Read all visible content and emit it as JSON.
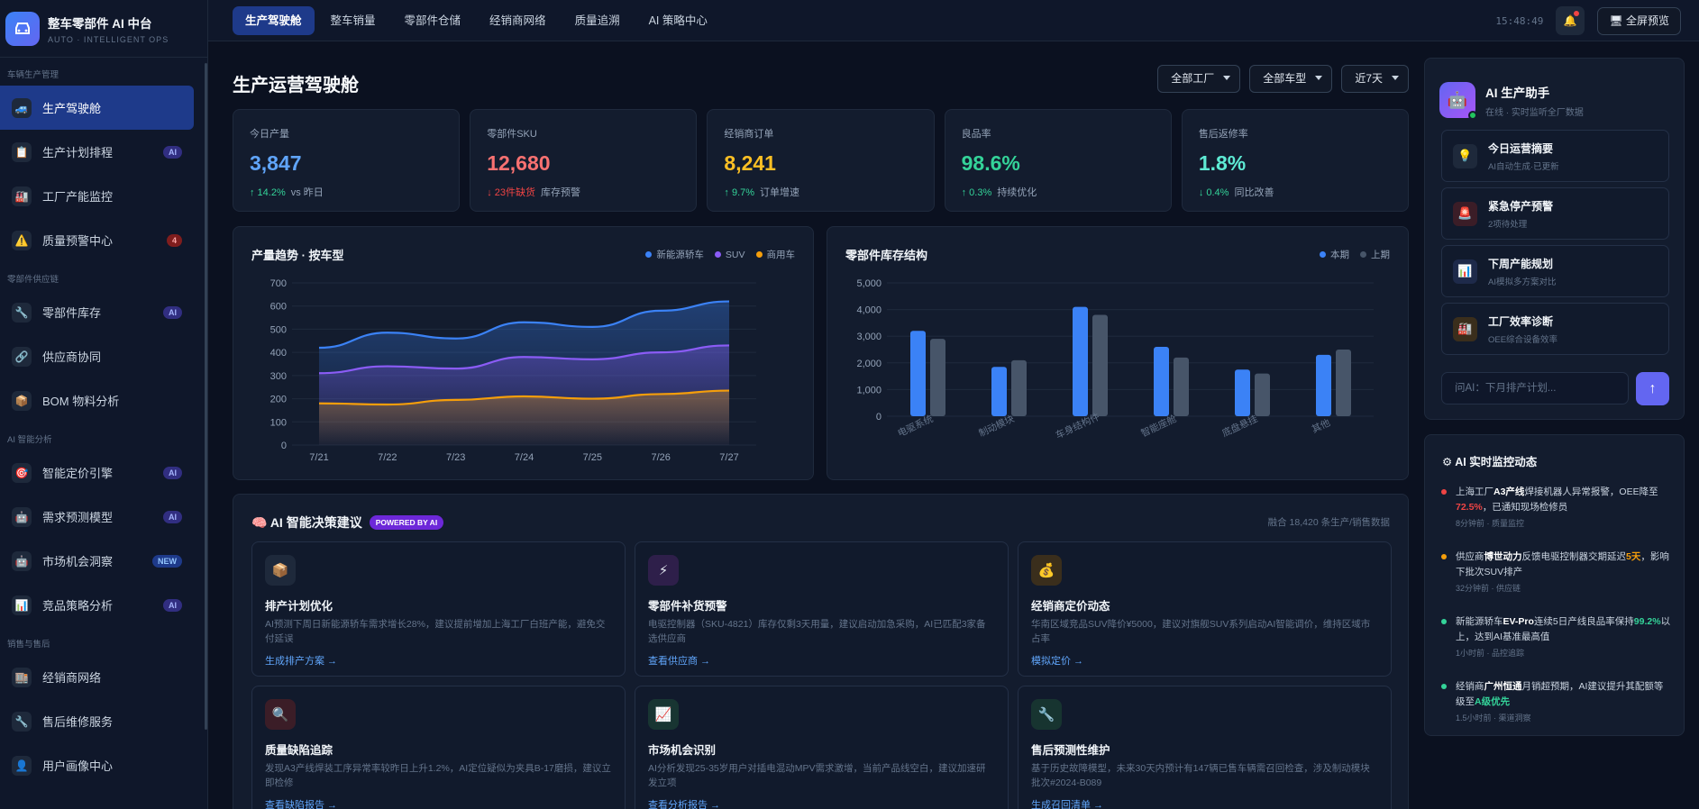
{
  "brand": {
    "title": "整车零部件 AI 中台",
    "subtitle": "AUTO · INTELLIGENT OPS"
  },
  "sidebar": {
    "sections": [
      {
        "title": "车辆生产管理",
        "items": [
          {
            "label": "生产驾驶舱",
            "icon": "car-icon",
            "badge": "",
            "active": true
          },
          {
            "label": "生产计划排程",
            "icon": "clipboard-icon",
            "badge": "AI"
          },
          {
            "label": "工厂产能监控",
            "icon": "factory-icon",
            "badge": ""
          },
          {
            "label": "质量预警中心",
            "icon": "warning-icon",
            "badge": "4"
          }
        ]
      },
      {
        "title": "零部件供应链",
        "items": [
          {
            "label": "零部件库存",
            "icon": "wrench-icon",
            "badge": "AI"
          },
          {
            "label": "供应商协同",
            "icon": "link-icon",
            "badge": ""
          },
          {
            "label": "BOM 物料分析",
            "icon": "box-icon",
            "badge": ""
          }
        ]
      },
      {
        "title": "AI 智能分析",
        "items": [
          {
            "label": "智能定价引擎",
            "icon": "target-icon",
            "badge": "AI"
          },
          {
            "label": "需求预测模型",
            "icon": "robot-icon",
            "badge": "AI"
          },
          {
            "label": "市场机会洞察",
            "icon": "robot-icon",
            "badge": "NEW"
          },
          {
            "label": "竞品策略分析",
            "icon": "chart-icon",
            "badge": "AI"
          }
        ]
      },
      {
        "title": "销售与售后",
        "items": [
          {
            "label": "经销商网络",
            "icon": "building-icon",
            "badge": ""
          },
          {
            "label": "售后维修服务",
            "icon": "wrench-icon",
            "badge": ""
          },
          {
            "label": "用户画像中心",
            "icon": "user-icon",
            "badge": ""
          }
        ]
      }
    ]
  },
  "topbar": {
    "tabs": [
      "生产驾驶舱",
      "整车销量",
      "零部件仓储",
      "经销商网络",
      "质量追溯",
      "AI 策略中心"
    ],
    "time": "15:48:49",
    "fullscreen": "全屏预览"
  },
  "page": {
    "title": "生产运营驾驶舱",
    "filters": [
      "全部工厂",
      "全部车型",
      "近7天"
    ]
  },
  "kpis": [
    {
      "title": "今日产量",
      "value": "3,847",
      "delta": "↑ 14.2%",
      "note": "vs 昨日",
      "color": "#60a5fa",
      "dir": "up"
    },
    {
      "title": "零部件SKU",
      "value": "12,680",
      "delta": "↓ 23件缺货",
      "note": "库存预警",
      "color": "#f87171",
      "dir": "down"
    },
    {
      "title": "经销商订单",
      "value": "8,241",
      "delta": "↑ 9.7%",
      "note": "订单增速",
      "color": "#fbbf24",
      "dir": "up"
    },
    {
      "title": "良品率",
      "value": "98.6%",
      "delta": "↑ 0.3%",
      "note": "持续优化",
      "color": "#34d399",
      "dir": "up"
    },
    {
      "title": "售后返修率",
      "value": "1.8%",
      "delta": "↓ 0.4%",
      "note": "同比改善",
      "color": "#5eead4",
      "dir": "downg"
    }
  ],
  "chart_data": [
    {
      "type": "area",
      "title": "产量趋势 · 按车型",
      "categories": [
        "7/21",
        "7/22",
        "7/23",
        "7/24",
        "7/25",
        "7/26",
        "7/27"
      ],
      "ylim": [
        0,
        700
      ],
      "yticks": [
        0,
        100,
        200,
        300,
        400,
        500,
        600,
        700
      ],
      "series": [
        {
          "name": "新能源轿车",
          "color": "#3b82f6",
          "values": [
            420,
            485,
            460,
            530,
            510,
            580,
            620
          ]
        },
        {
          "name": "SUV",
          "color": "#8b5cf6",
          "values": [
            310,
            340,
            330,
            380,
            370,
            400,
            430
          ]
        },
        {
          "name": "商用车",
          "color": "#f59e0b",
          "values": [
            180,
            175,
            195,
            210,
            200,
            220,
            235
          ]
        }
      ]
    },
    {
      "type": "bar",
      "title": "零部件库存结构",
      "categories": [
        "电驱系统",
        "制动模块",
        "车身结构件",
        "智能座舱",
        "底盘悬挂",
        "其他"
      ],
      "ylim": [
        0,
        5000
      ],
      "yticks": [
        "0",
        "1,000",
        "2,000",
        "3,000",
        "4,000",
        "5,000"
      ],
      "series": [
        {
          "name": "本期",
          "color": "#3b82f6",
          "values": [
            3200,
            1850,
            4100,
            2600,
            1750,
            2300
          ]
        },
        {
          "name": "上期",
          "color": "#475569",
          "values": [
            2900,
            2100,
            3800,
            2200,
            1600,
            2500
          ]
        }
      ]
    }
  ],
  "decisions": {
    "title": "AI 智能决策建议",
    "powered": "POWERED BY AI",
    "fused": "融合 18,420 条生产/销售数据",
    "cards": [
      {
        "title": "排产计划优化",
        "icon": "box-icon",
        "emoji": "📦",
        "bg": "#1e293b",
        "text": "AI预测下周日新能源轿车需求增长28%，建议提前增加上海工厂白班产能，避免交付延误",
        "action": "生成排产方案 →"
      },
      {
        "title": "零部件补货预警",
        "icon": "bolt-icon",
        "emoji": "⚡",
        "bg": "#2e1f4a",
        "text": "电驱控制器（SKU-4821）库存仅剩3天用量，建议启动加急采购，AI已匹配3家备选供应商",
        "action": "查看供应商 →"
      },
      {
        "title": "经销商定价动态",
        "icon": "moneybag-icon",
        "emoji": "💰",
        "bg": "#3a2e1c",
        "text": "华南区域竞品SUV降价¥5000，建议对旗舰SUV系列启动AI智能调价，维持区域市占率",
        "action": "模拟定价 →"
      },
      {
        "title": "质量缺陷追踪",
        "icon": "search-icon",
        "emoji": "🔍",
        "bg": "#3b1d27",
        "text": "发现A3产线焊装工序异常率较昨日上升1.2%，AI定位疑似为夹具B-17磨损，建议立即检修",
        "action": "查看缺陷报告 →"
      },
      {
        "title": "市场机会识别",
        "icon": "trend-icon",
        "emoji": "📈",
        "bg": "#183532",
        "text": "AI分析发现25-35岁用户对插电混动MPV需求激增，当前产品线空白，建议加速研发立项",
        "action": "查看分析报告 →"
      },
      {
        "title": "售后预测性维护",
        "icon": "wrench-icon",
        "emoji": "🔧",
        "bg": "#173430",
        "text": "基于历史故障模型，未来30天内预计有147辆已售车辆需召回检查，涉及制动模块批次#2024-B089",
        "action": "生成召回清单 →"
      }
    ]
  },
  "assistant": {
    "name": "AI 生产助手",
    "status": "在线 · 实时监听全厂数据",
    "items": [
      {
        "title": "今日运营摘要",
        "sub": "AI自动生成·已更新",
        "icon": "bulb-icon",
        "emoji": "💡",
        "bg": "#1e293b"
      },
      {
        "title": "紧急停产预警",
        "sub": "2项待处理",
        "icon": "alarm-icon",
        "emoji": "🚨",
        "bg": "#3b1d27"
      },
      {
        "title": "下周产能规划",
        "sub": "AI模拟多方案对比",
        "icon": "chart-icon",
        "emoji": "📊",
        "bg": "#1e2a4a"
      },
      {
        "title": "工厂效率诊断",
        "sub": "OEE综合设备效率",
        "icon": "factory-icon",
        "emoji": "🏭",
        "bg": "#3a2e1c"
      }
    ],
    "placeholder": "问AI：下月排产计划...",
    "send": "↑"
  },
  "monitor": {
    "title": "AI 实时监控动态",
    "items": [
      {
        "color": "#ef4444",
        "p1": "上海工厂",
        "b1": "A3产线",
        "p2": "焊接机器人异常报警，OEE降至",
        "h": "72.5%",
        "hc": "hr",
        "p3": "，已通知现场检修员",
        "meta": "8分钟前 · 质量监控"
      },
      {
        "color": "#f59e0b",
        "p1": "供应商",
        "b1": "博世动力",
        "p2": "反馈电驱控制器交期延迟",
        "h": "5天",
        "hc": "ho",
        "p3": "，影响下批次SUV排产",
        "meta": "32分钟前 · 供应链"
      },
      {
        "color": "#34d399",
        "p1": "新能源轿车",
        "b1": "EV-Pro",
        "p2": "连续5日产线良品率保持",
        "h": "99.2%",
        "hc": "hg",
        "p3": "以上，达到AI基准最高值",
        "meta": "1小时前 · 品控追踪"
      },
      {
        "color": "#34d399",
        "p1": "经销商",
        "b1": "广州恒通",
        "p2": "月销超预期，AI建议提升其配额等级至",
        "h": "A级优先",
        "hc": "hg",
        "p3": "",
        "meta": "1.5小时前 · 渠道洞察"
      }
    ]
  }
}
